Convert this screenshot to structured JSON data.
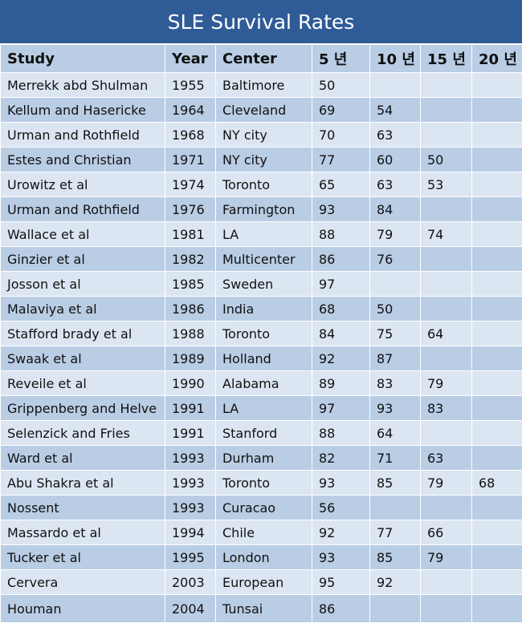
{
  "header": {
    "title": "SLE Survival Rates"
  },
  "table": {
    "columns": [
      "Study",
      "Year",
      "Center",
      "5 년",
      "10 년",
      "15 년",
      "20 년"
    ],
    "rows": [
      [
        "Merrekk abd Shulman",
        1955,
        "Baltimore",
        50,
        null,
        null,
        null
      ],
      [
        "Kellum and Hasericke",
        1964,
        "Cleveland",
        69,
        54,
        null,
        null
      ],
      [
        "Urman and Rothfield",
        1968,
        "NY city",
        70,
        63,
        null,
        null
      ],
      [
        "Estes and Christian",
        1971,
        "NY city",
        77,
        60,
        50,
        null
      ],
      [
        "Urowitz et al",
        1974,
        "Toronto",
        65,
        63,
        53,
        null
      ],
      [
        "Urman and Rothfield",
        1976,
        "Farmington",
        93,
        84,
        null,
        null
      ],
      [
        "Wallace et al",
        1981,
        "LA",
        88,
        79,
        74,
        null
      ],
      [
        "Ginzier et al",
        1982,
        "Multicenter",
        86,
        76,
        null,
        null
      ],
      [
        "Josson et al",
        1985,
        "Sweden",
        97,
        null,
        null,
        null
      ],
      [
        "Malaviya et al",
        1986,
        "India",
        68,
        50,
        null,
        null
      ],
      [
        "Stafford brady et al",
        1988,
        "Toronto",
        84,
        75,
        64,
        null
      ],
      [
        "Swaak et al",
        1989,
        "Holland",
        92,
        87,
        null,
        null
      ],
      [
        "Reveile et al",
        1990,
        "Alabama",
        89,
        83,
        79,
        null
      ],
      [
        "Grippenberg and Helve",
        1991,
        "LA",
        97,
        93,
        83,
        null
      ],
      [
        "Selenzick and Fries",
        1991,
        "Stanford",
        88,
        64,
        null,
        null
      ],
      [
        "Ward et al",
        1993,
        "Durham",
        82,
        71,
        63,
        null
      ],
      [
        "Abu Shakra et al",
        1993,
        "Toronto",
        93,
        85,
        79,
        68
      ],
      [
        "Nossent",
        1993,
        "Curacao",
        56,
        null,
        null,
        null
      ],
      [
        "Massardo et al",
        1994,
        "Chile",
        92,
        77,
        66,
        null
      ],
      [
        "Tucker et al",
        1995,
        "London",
        93,
        85,
        79,
        null
      ],
      [
        "Cervera",
        2003,
        "European",
        95,
        92,
        null,
        null
      ],
      [
        "Houman",
        2004,
        "Tunsai",
        86,
        null,
        null,
        null
      ]
    ]
  }
}
